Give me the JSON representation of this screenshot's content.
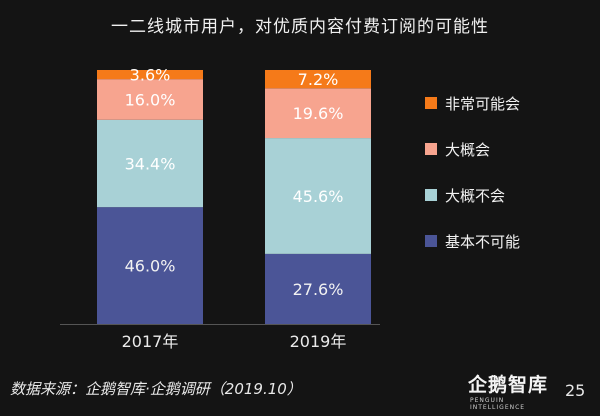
{
  "chart_data": {
    "type": "bar",
    "stacked": true,
    "title": "一二线城市用户，对优质内容付费订阅的可能性",
    "categories": [
      "2017年",
      "2019年"
    ],
    "series": [
      {
        "name": "基本不可能",
        "values": [
          46.0,
          27.6
        ],
        "labels": [
          "46.0%",
          "27.6%"
        ],
        "color": "#4b5597"
      },
      {
        "name": "大概不会",
        "values": [
          34.4,
          45.6
        ],
        "labels": [
          "34.4%",
          "45.6%"
        ],
        "color": "#a8d1d6"
      },
      {
        "name": "大概会",
        "values": [
          16.0,
          19.6
        ],
        "labels": [
          "16.0%",
          "19.6%"
        ],
        "color": "#f7a48f"
      },
      {
        "name": "非常可能会",
        "values": [
          3.6,
          7.2
        ],
        "labels": [
          "3.6%",
          "7.2%"
        ],
        "color": "#f57a19"
      }
    ],
    "legend_order": [
      "非常可能会",
      "大概会",
      "大概不会",
      "基本不可能"
    ],
    "legend_position": "right",
    "ylim": [
      0,
      100
    ],
    "grid": false
  },
  "footer": {
    "source": "数据来源：企鹅智库·企鹅调研（2019.10）",
    "logo_text": "企鹅智库",
    "logo_subtext": "PENGUIN INTELLIGENCE",
    "page_number": "25"
  }
}
